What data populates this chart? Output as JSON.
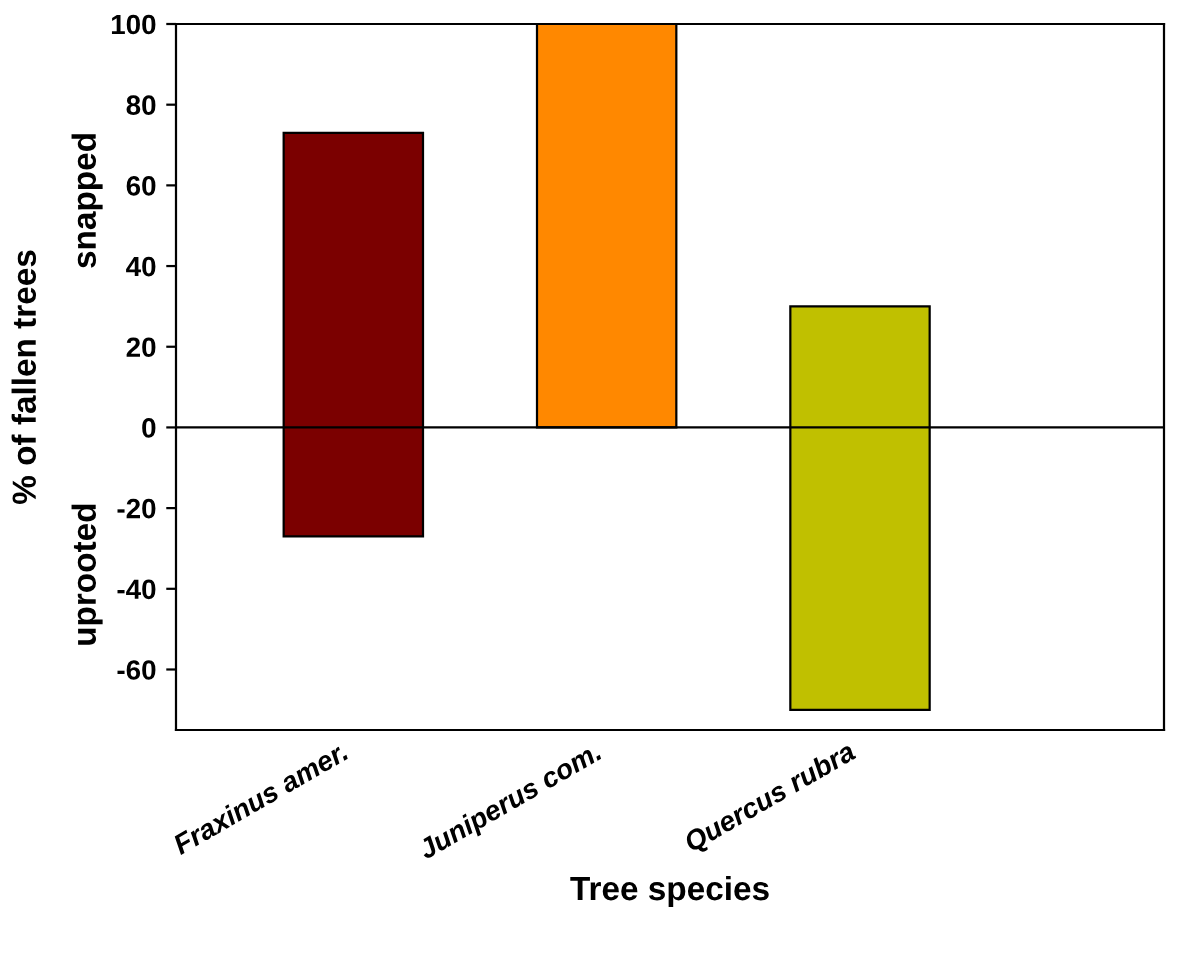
{
  "chart_data": {
    "type": "bar",
    "xlabel": "Tree species",
    "ylabel": "% of fallen trees",
    "annotations": [
      "snapped",
      "uprooted"
    ],
    "categories": [
      "Fraxinus amer.",
      "Juniperus com.",
      "Quercus rubra"
    ],
    "values": [
      100,
      100,
      100
    ],
    "base": [
      -27,
      0,
      -70
    ],
    "colors": [
      "#7b0000",
      "#ff8800",
      "#c0c000"
    ],
    "ylim": [
      -75,
      100
    ],
    "yticks": [
      -60,
      -40,
      -20,
      0,
      20,
      40,
      60,
      80,
      100
    ],
    "ref_lines": [
      {
        "axis": "y",
        "value": 0,
        "color": "#000000"
      }
    ],
    "grid": false,
    "legend": false
  }
}
